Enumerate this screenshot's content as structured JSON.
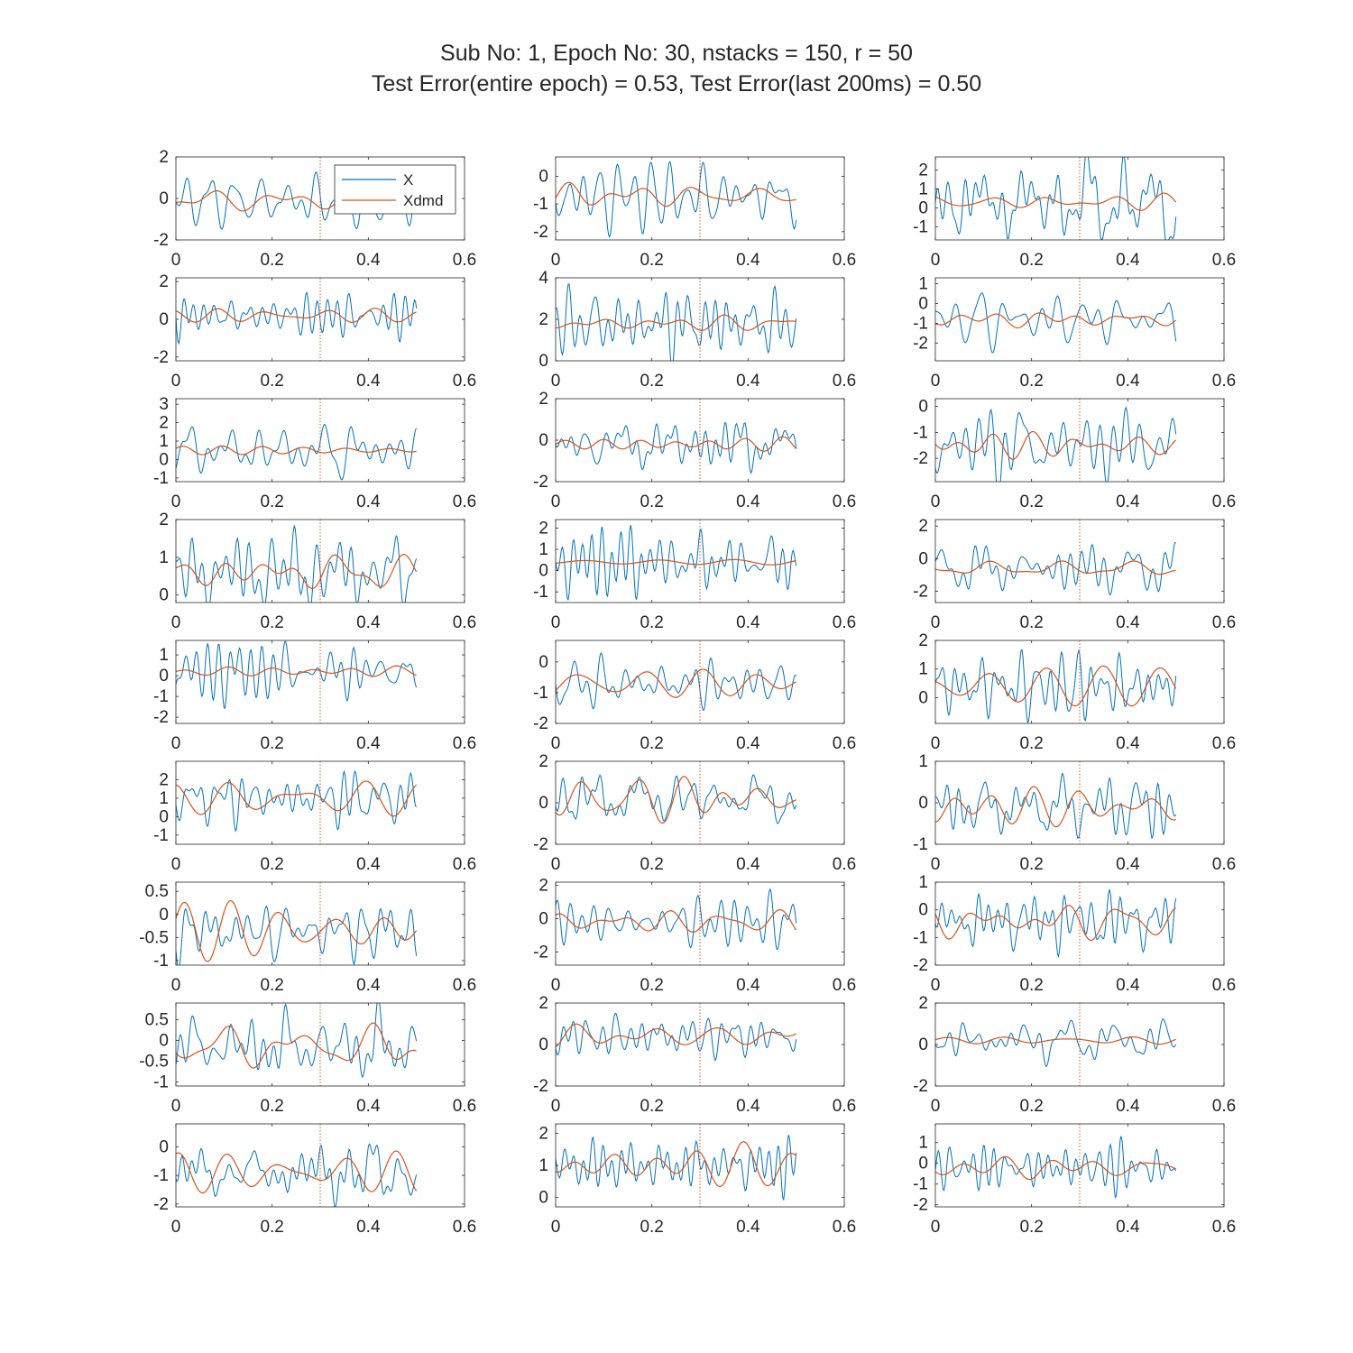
{
  "title_line1": "Sub No: 1, Epoch No: 30, nstacks = 150, r = 50",
  "title_line2": "Test Error(entire epoch) = 0.53, Test Error(last 200ms) = 0.50",
  "colors": {
    "X": "#0072BD",
    "Xdmd": "#D95319",
    "marker": "#D95319",
    "axis": "#262626"
  },
  "chart_data": {
    "type": "line",
    "layout": "grid 9 rows x 3 columns",
    "legend": {
      "entries": [
        "X",
        "Xdmd"
      ],
      "position": "top-right of first subplot"
    },
    "vertical_marker_x": 0.3,
    "x_ticks": [
      0,
      0.2,
      0.4,
      0.6
    ],
    "xlim": [
      0,
      0.6
    ],
    "series_names": [
      "X",
      "Xdmd"
    ],
    "subplots": [
      {
        "ylim": [
          -2,
          2
        ],
        "yticks": [
          -2,
          0,
          2
        ],
        "yticklabels": [
          "-2",
          "0",
          "2"
        ],
        "a": 0.8,
        "ab": 0.2,
        "b": 0.3,
        "c": -0.1
      },
      {
        "ylim": [
          -2.3,
          0.7
        ],
        "yticks": [
          -2,
          -1,
          0
        ],
        "yticklabels": [
          "-2",
          "-1",
          "0"
        ],
        "a": 0.8,
        "ab": 0.4,
        "b": 0.3,
        "c": -0.7
      },
      {
        "ylim": [
          -1.7,
          2.7
        ],
        "yticks": [
          -1,
          0,
          1,
          2
        ],
        "yticklabels": [
          "-1",
          "0",
          "1",
          "2"
        ],
        "a": 1.2,
        "ab": 0.5,
        "b": 0.25,
        "c": 0.3
      },
      {
        "ylim": [
          -2.2,
          2.2
        ],
        "yticks": [
          -2,
          0,
          2
        ],
        "yticklabels": [
          "-2",
          "0",
          "2"
        ],
        "a": 0.9,
        "ab": 0.3,
        "b": 0.15,
        "c": 0.2
      },
      {
        "ylim": [
          0,
          4
        ],
        "yticks": [
          0,
          2,
          4
        ],
        "yticklabels": [
          "0",
          "2",
          "4"
        ],
        "a": 0.9,
        "ab": 0.3,
        "b": 0.25,
        "c": 1.8
      },
      {
        "ylim": [
          -2.9,
          1.3
        ],
        "yticks": [
          -2,
          -1,
          0,
          1
        ],
        "yticklabels": [
          "-2",
          "-1",
          "0",
          "1"
        ],
        "a": 0.8,
        "ab": 0.3,
        "b": 0.2,
        "c": -0.8
      },
      {
        "ylim": [
          -1.2,
          3.3
        ],
        "yticks": [
          -1,
          0,
          1,
          2,
          3
        ],
        "yticklabels": [
          "-1",
          "0",
          "1",
          "2",
          "3"
        ],
        "a": 0.8,
        "ab": 0.3,
        "b": 0.2,
        "c": 0.5
      },
      {
        "ylim": [
          -2,
          2
        ],
        "yticks": [
          -2,
          0,
          2
        ],
        "yticklabels": [
          "-2",
          "0",
          "2"
        ],
        "a": 0.6,
        "ab": 0.3,
        "b": 0.2,
        "c": -0.2
      },
      {
        "ylim": [
          -2.9,
          0.3
        ],
        "yticks": [
          -2,
          -1,
          0
        ],
        "yticklabels": [
          "-2",
          "-1",
          "0"
        ],
        "a": 0.8,
        "ab": 0.3,
        "b": 0.25,
        "c": -1.5
      },
      {
        "ylim": [
          -0.2,
          2
        ],
        "yticks": [
          0,
          1,
          2
        ],
        "yticklabels": [
          "0",
          "1",
          "2"
        ],
        "a": 0.5,
        "ab": 0.2,
        "b": 0.2,
        "c": 0.6
      },
      {
        "ylim": [
          -1.5,
          2.4
        ],
        "yticks": [
          -1,
          0,
          1,
          2
        ],
        "yticklabels": [
          "-1",
          "0",
          "1",
          "2"
        ],
        "a": 0.8,
        "ab": 0.3,
        "b": 0.15,
        "c": 0.4
      },
      {
        "ylim": [
          -2.7,
          2.4
        ],
        "yticks": [
          -2,
          0,
          2
        ],
        "yticklabels": [
          "-2",
          "0",
          "2"
        ],
        "a": 1.1,
        "ab": 0.4,
        "b": 0.3,
        "c": -0.6
      },
      {
        "ylim": [
          -2.3,
          1.7
        ],
        "yticks": [
          -2,
          -1,
          0,
          1
        ],
        "yticklabels": [
          "-2",
          "-1",
          "0",
          "1"
        ],
        "a": 0.9,
        "ab": 0.3,
        "b": 0.3,
        "c": 0.2
      },
      {
        "ylim": [
          -2,
          0.7
        ],
        "yticks": [
          -2,
          -1,
          0
        ],
        "yticklabels": [
          "-2",
          "-1",
          "0"
        ],
        "a": 0.6,
        "ab": 0.25,
        "b": 0.3,
        "c": -0.7
      },
      {
        "ylim": [
          -0.9,
          2
        ],
        "yticks": [
          0,
          1,
          2
        ],
        "yticklabels": [
          "0",
          "1",
          "2"
        ],
        "a": 0.6,
        "ab": 0.2,
        "b": 0.3,
        "c": 0.4
      },
      {
        "ylim": [
          -1.5,
          3
        ],
        "yticks": [
          -1,
          0,
          1,
          2
        ],
        "yticklabels": [
          "-1",
          "0",
          "1",
          "2"
        ],
        "a": 0.9,
        "ab": 0.2,
        "b": 0.5,
        "c": 1.0
      },
      {
        "ylim": [
          -2,
          2
        ],
        "yticks": [
          -2,
          0,
          2
        ],
        "yticklabels": [
          "-2",
          "0",
          "2"
        ],
        "a": 0.7,
        "ab": 0.2,
        "b": 0.5,
        "c": 0.2
      },
      {
        "ylim": [
          -1,
          1
        ],
        "yticks": [
          -1,
          0,
          1
        ],
        "yticklabels": [
          "-1",
          "0",
          "1"
        ],
        "a": 0.4,
        "ab": 0.15,
        "b": 0.35,
        "c": -0.1
      },
      {
        "ylim": [
          -1.1,
          0.7
        ],
        "yticks": [
          -1,
          -0.5,
          0,
          0.5
        ],
        "yticklabels": [
          "-1",
          "-0.5",
          "0",
          "0.5"
        ],
        "a": 0.35,
        "ab": 0.15,
        "b": 0.3,
        "c": -0.35
      },
      {
        "ylim": [
          -2.8,
          2.2
        ],
        "yticks": [
          -2,
          0,
          2
        ],
        "yticklabels": [
          "-2",
          "0",
          "2"
        ],
        "a": 0.9,
        "ab": 0.3,
        "b": 0.4,
        "c": -0.2
      },
      {
        "ylim": [
          -2,
          1
        ],
        "yticks": [
          -2,
          -1,
          0,
          1
        ],
        "yticklabels": [
          "-2",
          "-1",
          "0",
          "1"
        ],
        "a": 0.6,
        "ab": 0.2,
        "b": 0.3,
        "c": -0.4
      },
      {
        "ylim": [
          -1.1,
          0.9
        ],
        "yticks": [
          -1,
          -0.5,
          0,
          0.5
        ],
        "yticklabels": [
          "-1",
          "-0.5",
          "0",
          "0.5"
        ],
        "a": 0.4,
        "ab": 0.15,
        "b": 0.35,
        "c": -0.15
      },
      {
        "ylim": [
          -2,
          2
        ],
        "yticks": [
          -2,
          0,
          2
        ],
        "yticklabels": [
          "-2",
          "0",
          "2"
        ],
        "a": 0.6,
        "ab": 0.2,
        "b": 0.3,
        "c": 0.4
      },
      {
        "ylim": [
          -2,
          2
        ],
        "yticks": [
          -2,
          0,
          2
        ],
        "yticklabels": [
          "-2",
          "0",
          "2"
        ],
        "a": 0.6,
        "ab": 0.2,
        "b": 0.3,
        "c": 0.2
      },
      {
        "ylim": [
          -2.1,
          0.8
        ],
        "yticks": [
          -2,
          -1,
          0
        ],
        "yticklabels": [
          "-2",
          "-1",
          "0"
        ],
        "a": 0.6,
        "ab": 0.2,
        "b": 0.45,
        "c": -0.9
      },
      {
        "ylim": [
          -0.3,
          2.3
        ],
        "yticks": [
          0,
          1,
          2
        ],
        "yticklabels": [
          "0",
          "1",
          "2"
        ],
        "a": 0.5,
        "ab": 0.2,
        "b": 0.35,
        "c": 1.0
      },
      {
        "ylim": [
          -2.1,
          1.9
        ],
        "yticks": [
          -2,
          -1,
          0,
          1
        ],
        "yticklabels": [
          "-2",
          "-1",
          "0",
          "1"
        ],
        "a": 0.6,
        "ab": 0.2,
        "b": 0.3,
        "c": -0.2
      }
    ]
  }
}
